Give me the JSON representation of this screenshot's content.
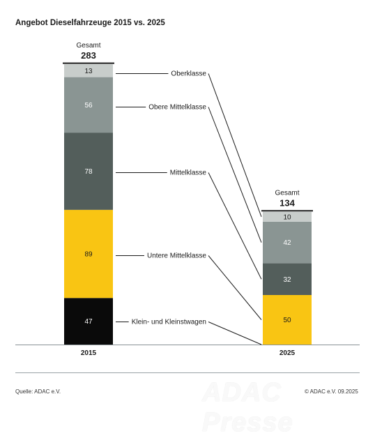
{
  "title": "Angebot Dieselfahrzeuge 2015 vs. 2025",
  "source": "Quelle: ADAC e.V.",
  "copyright": "© ADAC e.V. 09.2025",
  "watermark": "ADAC Presse",
  "colors": {
    "Oberklasse": "#c8cdcb",
    "Obere Mittelklasse": "#8a9593",
    "Mittelklasse": "#535e5b",
    "Untere Mittelklasse": "#f9c513",
    "Klein- und Kleinstwagen": "#0a0a0a"
  },
  "chart_data": {
    "type": "bar",
    "stacked": true,
    "title": "Angebot Dieselfahrzeuge 2015 vs. 2025",
    "categories": [
      "2015",
      "2025"
    ],
    "totals_label": "Gesamt",
    "totals": [
      283,
      134
    ],
    "series": [
      {
        "name": "Klein- und Kleinstwagen",
        "values": [
          47,
          0
        ]
      },
      {
        "name": "Untere Mittelklasse",
        "values": [
          89,
          50
        ]
      },
      {
        "name": "Mittelklasse",
        "values": [
          78,
          32
        ]
      },
      {
        "name": "Obere Mittelklasse",
        "values": [
          56,
          42
        ]
      },
      {
        "name": "Oberklasse",
        "values": [
          13,
          10
        ]
      }
    ]
  }
}
